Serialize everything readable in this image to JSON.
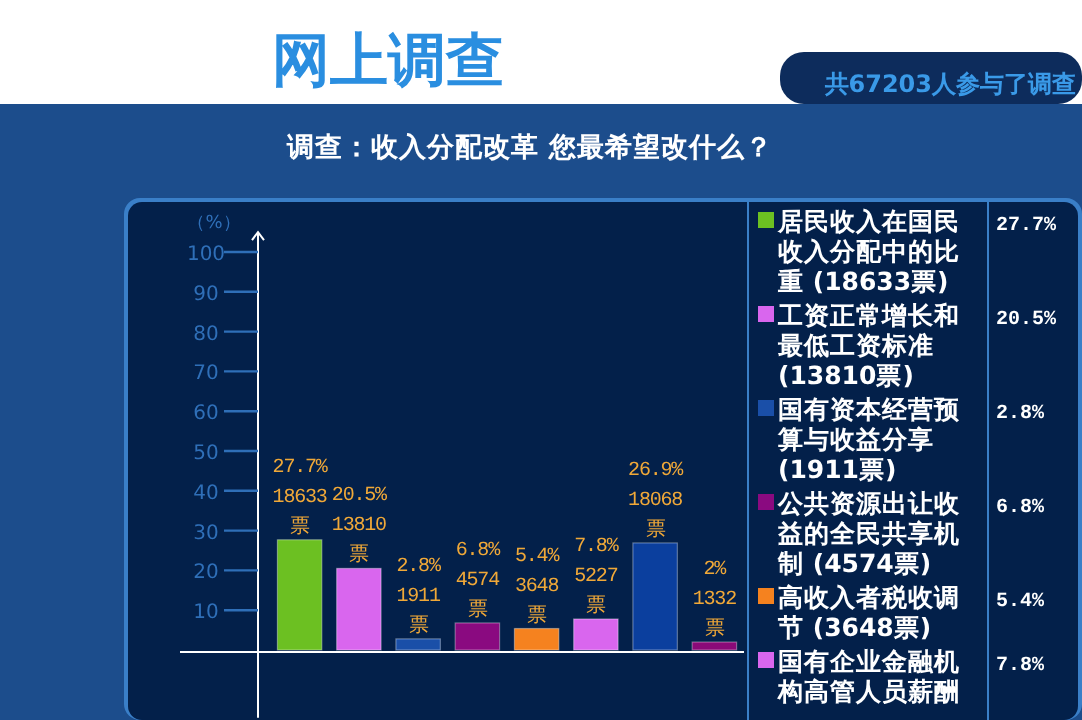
{
  "chart_data": [
    {
      "type": "bar",
      "title": "调查：收入分配改革  您最希望改什么？",
      "subtitle": "网上调查",
      "annotations": [
        "共67203人参与了调查"
      ],
      "ylabel": "（%）",
      "categories": [
        null,
        null,
        null,
        null,
        null,
        null,
        null,
        null
      ],
      "values": [
        27.7,
        20.5,
        2.8,
        6.8,
        5.4,
        7.8,
        26.9,
        2
      ],
      "colors": [
        "#6cc022",
        "#d966ee",
        "#1a4fa8",
        "#8a0a80",
        "#f5821f",
        "#d966ee",
        "#0b3f9e",
        "#8a0a78"
      ],
      "value_labels": [
        "27.7%\n18633\n票",
        "20.5%\n13810\n票",
        "2.8%\n1911\n票",
        "6.8%\n4574\n票",
        "5.4%\n3648\n票",
        "7.8%\n5227\n票",
        "26.9%\n18068\n票",
        "2%\n1332\n票"
      ],
      "ylim": [
        -17,
        105
      ],
      "yticks": [
        10,
        20,
        30,
        40,
        50,
        60,
        70,
        80,
        90,
        100
      ],
      "grid": false
    },
    {
      "type": "other",
      "annotations": [
        "居民收入在国民收入分配中的比重 (18633票)",
        "27.7%",
        "工资正常增长和最低工资标准 (13810票)",
        "20.5%",
        "国有资本经营预算与收益分享 (1911票)",
        "2.8%",
        "公共资源出让收益的全民共享机制 (4574票)",
        "6.8%",
        "高收入者税收调节 (3648票)",
        "5.4%",
        "国有企业金融机构高管人员薪酬",
        "7.8%"
      ]
    }
  ]
}
